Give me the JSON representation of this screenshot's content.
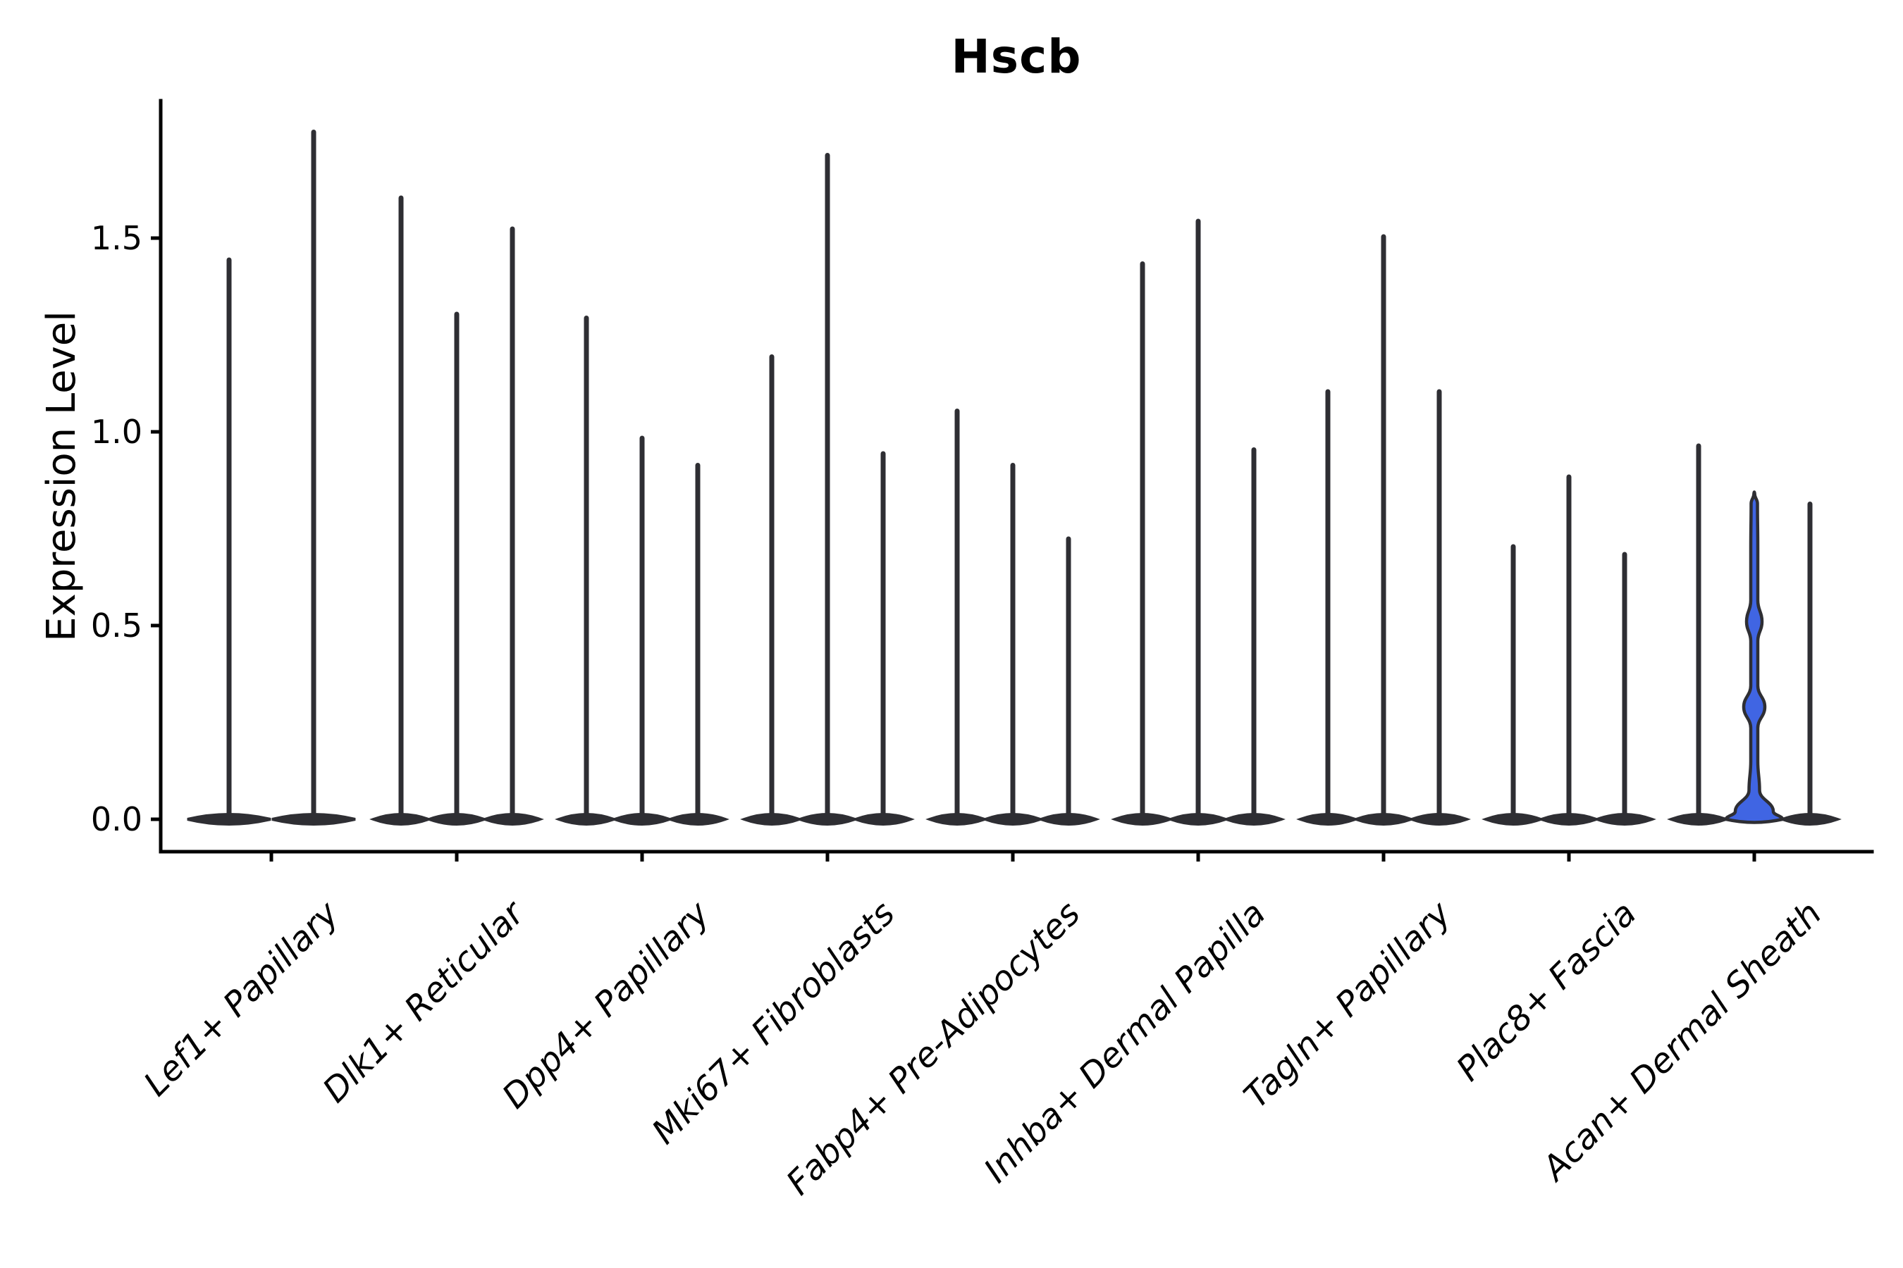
{
  "chart_data": {
    "type": "violin",
    "title": "Hscb",
    "ylabel": "Expression Level",
    "xlabel": "",
    "ytick_labels": [
      "0.0",
      "0.5",
      "1.0",
      "1.5"
    ],
    "ytick_values": [
      0,
      0.5,
      1.0,
      1.5
    ],
    "ylim": [
      -0.084,
      1.855
    ],
    "grid": false,
    "legend": "none",
    "categories": [
      "Lef1+ Papillary",
      "Dlk1+ Reticular",
      "Dpp4+ Papillary",
      "Mki67+ Fibroblasts",
      "Fabp4+ Pre-Adipocytes",
      "Inhba+ Dermal Papilla",
      "Tagln+ Papillary",
      "Plac8+ Fascia",
      "Acan+ Dermal Sheath"
    ],
    "groups": [
      {
        "category": "Lef1+ Papillary",
        "violins": [
          {
            "max": 1.45
          },
          {
            "max": 1.78
          }
        ]
      },
      {
        "category": "Dlk1+ Reticular",
        "violins": [
          {
            "max": 1.61
          },
          {
            "max": 1.31
          },
          {
            "max": 1.53
          }
        ]
      },
      {
        "category": "Dpp4+ Papillary",
        "violins": [
          {
            "max": 1.3
          },
          {
            "max": 0.99
          },
          {
            "max": 0.92
          }
        ]
      },
      {
        "category": "Mki67+ Fibroblasts",
        "violins": [
          {
            "max": 1.2
          },
          {
            "max": 1.72
          },
          {
            "max": 0.95
          }
        ]
      },
      {
        "category": "Fabp4+ Pre-Adipocytes",
        "violins": [
          {
            "max": 1.06
          },
          {
            "max": 0.92
          },
          {
            "max": 0.73
          }
        ]
      },
      {
        "category": "Inhba+ Dermal Papilla",
        "violins": [
          {
            "max": 1.44
          },
          {
            "max": 1.55
          },
          {
            "max": 0.96
          }
        ]
      },
      {
        "category": "Tagln+ Papillary",
        "violins": [
          {
            "max": 1.11
          },
          {
            "max": 1.51
          },
          {
            "max": 1.11
          }
        ]
      },
      {
        "category": "Plac8+ Fascia",
        "violins": [
          {
            "max": 0.71
          },
          {
            "max": 0.89
          },
          {
            "max": 0.69
          }
        ]
      },
      {
        "category": "Acan+ Dermal Sheath",
        "violins": [
          {
            "max": 0.97
          },
          {
            "max": 0.84,
            "style": "shaped",
            "fill": "blue",
            "profile": [
              [
                0,
                40
              ],
              [
                0.02,
                27
              ],
              [
                0.075,
                7.5
              ],
              [
                0.15,
                5
              ],
              [
                0.235,
                5
              ],
              [
                0.29,
                15
              ],
              [
                0.345,
                5
              ],
              [
                0.46,
                5
              ],
              [
                0.51,
                11
              ],
              [
                0.565,
                5
              ],
              [
                0.7,
                5
              ],
              [
                0.815,
                4.5
              ],
              [
                0.84,
                0.6
              ]
            ]
          },
          {
            "max": 0.82
          }
        ]
      }
    ],
    "colors": {
      "violin_dark": "#2e2e33",
      "violin_blue": "#4065e3",
      "axis": "#000000",
      "text": "#000000",
      "background": "#ffffff"
    }
  }
}
